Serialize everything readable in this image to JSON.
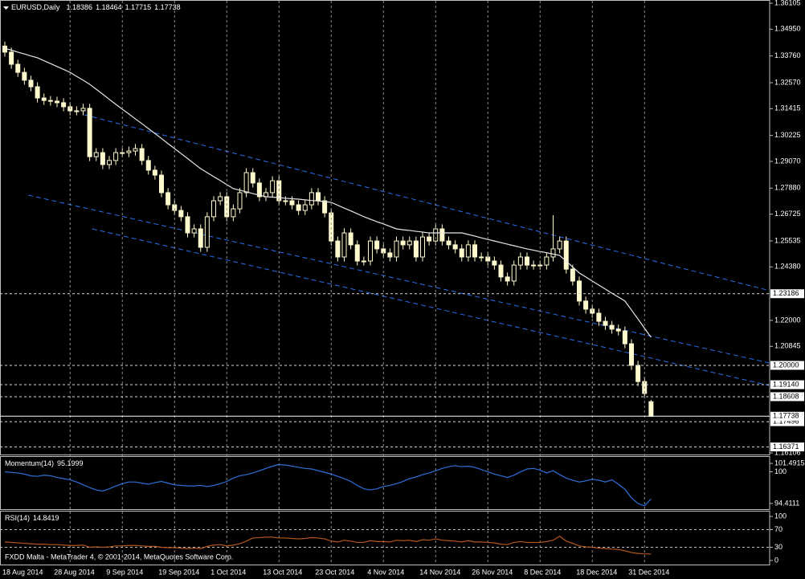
{
  "chart_data": [
    {
      "type": "candlestick",
      "title": "EURUSD,Daily",
      "color": "#fffacd",
      "bull_fill": "#000000",
      "categories": [
        "18 Aug 2014",
        null,
        null,
        null,
        null,
        null,
        null,
        null,
        null,
        null,
        "28 Aug 2014",
        null,
        null,
        null,
        null,
        null,
        null,
        null,
        "9 Sep 2014",
        null,
        null,
        null,
        null,
        null,
        null,
        null,
        "19 Sep 2014",
        null,
        null,
        null,
        null,
        null,
        null,
        null,
        "1 Oct 2014",
        null,
        null,
        null,
        null,
        null,
        null,
        null,
        "13 Oct 2014",
        null,
        null,
        null,
        null,
        null,
        null,
        null,
        "23 Oct 2014",
        null,
        null,
        null,
        null,
        null,
        null,
        null,
        "4 Nov 2014",
        null,
        null,
        null,
        null,
        null,
        null,
        null,
        "14 Nov 2014",
        null,
        null,
        null,
        null,
        null,
        null,
        null,
        "26 Nov 2014",
        null,
        null,
        null,
        null,
        null,
        null,
        null,
        "8 Dec 2014",
        null,
        null,
        null,
        null,
        null,
        null,
        null,
        "18 Dec 2014",
        null,
        null,
        null,
        null,
        null,
        null,
        null,
        "31 Dec 2014",
        null
      ],
      "open": [
        1.342,
        1.3393,
        1.3339,
        1.3303,
        1.3268,
        1.3239,
        1.3189,
        1.3178,
        1.3175,
        1.3168,
        1.315,
        1.3132,
        1.3132,
        1.3143,
        1.2928,
        1.2946,
        1.2893,
        1.2911,
        1.2946,
        1.2946,
        1.2953,
        1.2964,
        1.2911,
        1.2868,
        1.2846,
        1.2768,
        1.2714,
        1.2689,
        1.2661,
        1.2589,
        1.2607,
        1.2525,
        1.2661,
        1.2732,
        1.275,
        1.2661,
        1.2696,
        1.2768,
        1.2857,
        1.2811,
        1.275,
        1.2768,
        1.2821,
        1.2732,
        1.2732,
        1.2714,
        1.2689,
        1.2714,
        1.2768,
        1.2732,
        1.2678,
        1.2553,
        1.2482,
        1.2589,
        1.2536,
        1.2464,
        1.2464,
        1.2553,
        1.2518,
        1.25,
        1.2482,
        1.2553,
        1.2536,
        1.2553,
        1.2482,
        1.2571,
        1.2553,
        1.2607,
        1.2553,
        1.2536,
        1.2518,
        1.2482,
        1.2536,
        1.2482,
        1.2482,
        1.2464,
        1.2446,
        1.2393,
        1.2375,
        1.2446,
        1.2482,
        1.2446,
        1.2446,
        1.2446,
        1.2482,
        1.2518,
        1.2553,
        1.2428,
        1.2375,
        1.2286,
        1.225,
        1.2232,
        1.2196,
        1.2178,
        1.2161,
        1.2153,
        1.2096,
        1.2,
        1.1928,
        1.18386
      ],
      "high": [
        1.344,
        1.3413,
        1.3359,
        1.3323,
        1.3288,
        1.3259,
        1.3209,
        1.3198,
        1.3195,
        1.3188,
        1.317,
        1.3152,
        1.3163,
        1.3163,
        1.2966,
        1.2966,
        1.2931,
        1.2966,
        1.2966,
        1.2973,
        1.2984,
        1.2984,
        1.2931,
        1.2888,
        1.2866,
        1.2788,
        1.2734,
        1.2709,
        1.2681,
        1.2627,
        1.2627,
        1.2681,
        1.2752,
        1.277,
        1.277,
        1.2716,
        1.2788,
        1.2877,
        1.2877,
        1.2831,
        1.2788,
        1.2841,
        1.2841,
        1.2752,
        1.2752,
        1.2734,
        1.2734,
        1.2788,
        1.2788,
        1.2752,
        1.2698,
        1.2573,
        1.2609,
        1.2609,
        1.2556,
        1.2484,
        1.2573,
        1.2573,
        1.2538,
        1.252,
        1.2573,
        1.2573,
        1.2573,
        1.2573,
        1.2591,
        1.2591,
        1.2627,
        1.2627,
        1.2573,
        1.2556,
        1.2538,
        1.2556,
        1.2556,
        1.2502,
        1.2502,
        1.2484,
        1.2466,
        1.2413,
        1.2466,
        1.2502,
        1.2502,
        1.2466,
        1.2466,
        1.2502,
        1.2668,
        1.2573,
        1.2573,
        1.2448,
        1.2395,
        1.2306,
        1.227,
        1.2252,
        1.2216,
        1.2198,
        1.2181,
        1.2173,
        1.2116,
        1.202,
        1.1948,
        1.18464
      ],
      "low": [
        1.3373,
        1.3319,
        1.3283,
        1.3248,
        1.3219,
        1.3169,
        1.3158,
        1.3155,
        1.3148,
        1.313,
        1.3112,
        1.3112,
        1.3112,
        1.2908,
        1.2908,
        1.2873,
        1.2873,
        1.2891,
        1.2926,
        1.2926,
        1.2933,
        1.2891,
        1.2848,
        1.2826,
        1.2748,
        1.2694,
        1.2669,
        1.2641,
        1.2569,
        1.2569,
        1.2505,
        1.2505,
        1.2641,
        1.2712,
        1.2641,
        1.2641,
        1.2676,
        1.2748,
        1.2791,
        1.273,
        1.273,
        1.2748,
        1.2712,
        1.2712,
        1.2694,
        1.2669,
        1.2669,
        1.2694,
        1.2712,
        1.2658,
        1.2533,
        1.2462,
        1.2462,
        1.2516,
        1.2444,
        1.2444,
        1.2444,
        1.2498,
        1.248,
        1.2462,
        1.2462,
        1.2516,
        1.2516,
        1.2462,
        1.2462,
        1.2533,
        1.2533,
        1.2533,
        1.2516,
        1.2498,
        1.2462,
        1.2462,
        1.2462,
        1.2462,
        1.2444,
        1.2426,
        1.2373,
        1.2355,
        1.2355,
        1.2426,
        1.2426,
        1.2426,
        1.2426,
        1.2426,
        1.2462,
        1.2498,
        1.2408,
        1.2355,
        1.2266,
        1.223,
        1.2212,
        1.2176,
        1.2158,
        1.2141,
        1.2133,
        1.2076,
        1.198,
        1.1908,
        1.1855,
        1.17715
      ],
      "close": [
        1.3393,
        1.3339,
        1.3303,
        1.3268,
        1.3239,
        1.3189,
        1.3178,
        1.3175,
        1.3168,
        1.315,
        1.3132,
        1.3132,
        1.3143,
        1.2928,
        1.2946,
        1.2893,
        1.2911,
        1.2946,
        1.2946,
        1.2953,
        1.2964,
        1.2911,
        1.2868,
        1.2846,
        1.2768,
        1.2714,
        1.2689,
        1.2661,
        1.2589,
        1.2607,
        1.2525,
        1.2661,
        1.2732,
        1.275,
        1.2661,
        1.2696,
        1.2768,
        1.2857,
        1.2811,
        1.275,
        1.2768,
        1.2821,
        1.2732,
        1.2732,
        1.2714,
        1.2689,
        1.2714,
        1.2768,
        1.2732,
        1.2678,
        1.2553,
        1.2482,
        1.2589,
        1.2536,
        1.2464,
        1.2464,
        1.2553,
        1.2518,
        1.25,
        1.2482,
        1.2553,
        1.2536,
        1.2553,
        1.2482,
        1.2571,
        1.2553,
        1.2607,
        1.2553,
        1.2536,
        1.2518,
        1.2482,
        1.2536,
        1.2482,
        1.2482,
        1.2464,
        1.2446,
        1.2393,
        1.2375,
        1.2446,
        1.2482,
        1.2446,
        1.2446,
        1.2446,
        1.2482,
        1.2518,
        1.2553,
        1.2428,
        1.2375,
        1.2286,
        1.225,
        1.2232,
        1.2196,
        1.2178,
        1.2161,
        1.2153,
        1.2096,
        1.2,
        1.1928,
        1.1875,
        1.17738
      ],
      "ma": {
        "color": "#e6e6e6",
        "values": [
          1.341,
          1.3402,
          1.3393,
          1.3385,
          1.3376,
          1.3368,
          1.3355,
          1.3342,
          1.3329,
          1.3316,
          1.3303,
          1.3285,
          1.3268,
          1.325,
          1.3228,
          1.3206,
          1.3183,
          1.3161,
          1.3139,
          1.3118,
          1.3096,
          1.3075,
          1.3053,
          1.3031,
          1.3009,
          1.2986,
          1.2964,
          1.2942,
          1.292,
          1.2897,
          1.2875,
          1.2857,
          1.2839,
          1.2822,
          1.2804,
          1.2786,
          1.2779,
          1.2772,
          1.2764,
          1.2757,
          1.275,
          1.2748,
          1.2746,
          1.2743,
          1.2741,
          1.2739,
          1.2736,
          1.2733,
          1.2731,
          1.2728,
          1.2725,
          1.2712,
          1.2699,
          1.2687,
          1.2674,
          1.2661,
          1.265,
          1.2639,
          1.2629,
          1.2618,
          1.2607,
          1.2603,
          1.26,
          1.2596,
          1.2593,
          1.2589,
          1.2589,
          1.2589,
          1.2589,
          1.2589,
          1.2589,
          1.2582,
          1.2575,
          1.2567,
          1.256,
          1.2553,
          1.2546,
          1.2539,
          1.2532,
          1.2525,
          1.2518,
          1.2512,
          1.2506,
          1.2501,
          1.2495,
          1.2489,
          1.2463,
          1.2437,
          1.2411,
          1.2393,
          1.2375,
          1.2357,
          1.2339,
          1.2321,
          1.2304,
          1.2286,
          1.2246,
          1.2206,
          1.2165,
          1.2125
        ]
      },
      "trendlines": {
        "color": "#2a6ef0",
        "lines": [
          [
            [
              12.2,
              1.3114
            ],
            [
              117.2,
              1.2332
            ]
          ],
          [
            [
              3.6,
              1.2757
            ],
            [
              117.2,
              1.201
            ]
          ],
          [
            [
              13.4,
              1.2607
            ],
            [
              117.2,
              1.191
            ]
          ]
        ]
      },
      "ylim": [
        1.16106,
        1.36105
      ],
      "yticks": [
        1.36105,
        {
          "value": 1.3495,
          "label": "1.34950"
        },
        {
          "value": 1.3376,
          "label": "1.33760"
        },
        {
          "value": 1.3257,
          "label": "1.32570"
        },
        1.31415,
        1.30225,
        {
          "value": 1.2907,
          "label": "1.29070"
        },
        {
          "value": 1.2788,
          "label": "1.27880"
        },
        1.26725,
        1.25535,
        {
          "value": 1.2438,
          "label": "1.24380"
        },
        {
          "value": 1.22,
          "label": "1.22000"
        },
        1.20845,
        1.16106
      ],
      "levels": [
        1.23186,
        {
          "value": 1.2,
          "label": "1.20000"
        },
        {
          "value": 1.1914,
          "label": "1.19140"
        },
        1.18608,
        1.17496,
        1.16371
      ]
    },
    {
      "type": "line",
      "title": "Momentum(14)",
      "color": "#2f6fd8",
      "ylim": [
        93.4,
        102.35
      ],
      "yticks": [
        101.4915,
        100,
        94.4111
      ],
      "values": [
        100.0,
        99.9,
        99.8,
        99.6,
        99.3,
        99.2,
        99.4,
        99.3,
        99.0,
        98.8,
        98.6,
        98.2,
        97.7,
        97.2,
        96.8,
        96.6,
        97.0,
        97.5,
        97.9,
        98.2,
        98.2,
        98.0,
        97.8,
        98.1,
        98.3,
        98.0,
        97.7,
        97.6,
        97.5,
        97.5,
        97.6,
        97.4,
        97.6,
        97.9,
        98.3,
        98.9,
        99.3,
        99.5,
        99.8,
        100.2,
        100.6,
        101.0,
        101.3,
        101.2,
        101.0,
        100.8,
        100.6,
        100.5,
        100.2,
        99.9,
        99.6,
        99.2,
        98.8,
        98.3,
        97.6,
        97.0,
        96.8,
        97.0,
        97.4,
        97.6,
        97.9,
        98.3,
        98.8,
        99.1,
        99.5,
        99.8,
        100.2,
        100.6,
        100.9,
        101.1,
        100.9,
        101.0,
        100.8,
        100.4,
        100.0,
        99.6,
        99.3,
        99.0,
        99.4,
        100.0,
        100.5,
        100.6,
        100.3,
        99.8,
        100.2,
        99.5,
        98.9,
        98.5,
        98.2,
        98.4,
        98.7,
        98.5,
        98.2,
        98.6,
        97.8,
        96.9,
        95.4,
        94.4,
        94.0,
        95.1999
      ]
    },
    {
      "type": "line",
      "title": "RSI(14)",
      "color": "#b4571c",
      "ylim": [
        -5.6,
        111.1
      ],
      "yticks": [
        100,
        70,
        30,
        0
      ],
      "levels": [
        70,
        30
      ],
      "footer": "FXDD Malta - MetaTrader 4, © 2001-2014, MetaQuotes Software Corp.",
      "values": [
        42,
        41,
        40,
        39,
        38,
        37,
        37,
        36,
        36,
        35,
        34,
        34,
        35,
        30,
        31,
        30,
        31,
        33,
        33,
        34,
        34,
        33,
        32,
        32,
        30,
        29,
        29,
        28,
        27,
        28,
        27,
        32,
        35,
        36,
        33,
        35,
        38,
        44,
        51,
        52,
        53,
        53,
        51,
        51,
        50,
        49,
        50,
        52,
        51,
        49,
        44,
        42,
        46,
        44,
        41,
        41,
        45,
        43,
        43,
        42,
        46,
        45,
        46,
        43,
        47,
        46,
        49,
        46,
        45,
        44,
        42,
        45,
        42,
        42,
        41,
        40,
        37,
        36,
        41,
        43,
        41,
        41,
        41,
        43,
        46,
        55,
        44,
        39,
        33,
        31,
        30,
        28,
        27,
        26,
        25,
        22,
        18,
        16,
        15,
        14.8419
      ]
    }
  ]
}
